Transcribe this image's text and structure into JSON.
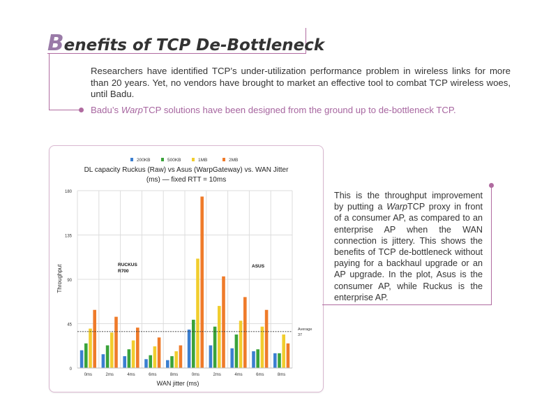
{
  "heading": {
    "cap_letter": "B",
    "rest": "enefits of TCP De-Bottleneck"
  },
  "intro": {
    "text": "Researchers have identified TCP’s under-utilization performance problem in wireless links for more than 20 years. Yet, no vendors have brought to market an effective tool to combat TCP wireless woes, until Badu."
  },
  "highlight": {
    "prefix": "Badu’s ",
    "italic": "Warp",
    "suffix": "TCP solutions have been designed from the ground up to de-bottleneck TCP."
  },
  "side_note": {
    "part1": "This is the throughput improvement by putting a ",
    "italic": "Warp",
    "part2": "TCP proxy in front of a consumer AP, as compared to an enterprise AP when the WAN connection is jittery. This shows the benefits of TCP de-bottleneck without paying for a backhaul upgrade or an AP upgrade. In the plot, Asus is the consumer AP, while Ruckus is the enterprise AP."
  },
  "colors": {
    "accent": "#b06ba0",
    "series": [
      "#3b7fd0",
      "#3aa33a",
      "#f1cd2e",
      "#ef7b2a"
    ]
  },
  "chart_data": {
    "type": "bar",
    "title_line1": "DL capacity Ruckus (Raw) vs Asus (WarpGateway) vs. WAN Jitter",
    "title_line2": "(ms) — fixed RTT = 10ms",
    "xlabel": "WAN jitter (ms)",
    "ylabel": "Throughput",
    "ylim": [
      0,
      180
    ],
    "yticks": [
      "0",
      "45",
      "90",
      "135",
      "180"
    ],
    "grid": true,
    "legend_position": "top",
    "categories": [
      "0ms",
      "2ms",
      "4ms",
      "6ms",
      "8ms",
      "0ms",
      "2ms",
      "4ms",
      "6ms",
      "8ms"
    ],
    "series": [
      {
        "name": "200KB",
        "values": [
          18,
          14,
          12,
          9,
          8,
          39,
          23,
          20,
          17,
          15
        ]
      },
      {
        "name": "500KB",
        "values": [
          25,
          23,
          19,
          13,
          12,
          49,
          42,
          34,
          19,
          15
        ]
      },
      {
        "name": "1MB",
        "values": [
          40,
          36,
          28,
          22,
          17,
          111,
          63,
          48,
          42,
          34
        ]
      },
      {
        "name": "2MB",
        "values": [
          59,
          52,
          41,
          31,
          23,
          174,
          93,
          72,
          59,
          25
        ]
      }
    ],
    "average": {
      "value": 37,
      "label_line1": "Average",
      "label_line2": "37"
    },
    "annotations": [
      {
        "line1": "RUCKUS",
        "line2": "R700"
      },
      {
        "line1": "ASUS",
        "line2": ""
      }
    ]
  }
}
